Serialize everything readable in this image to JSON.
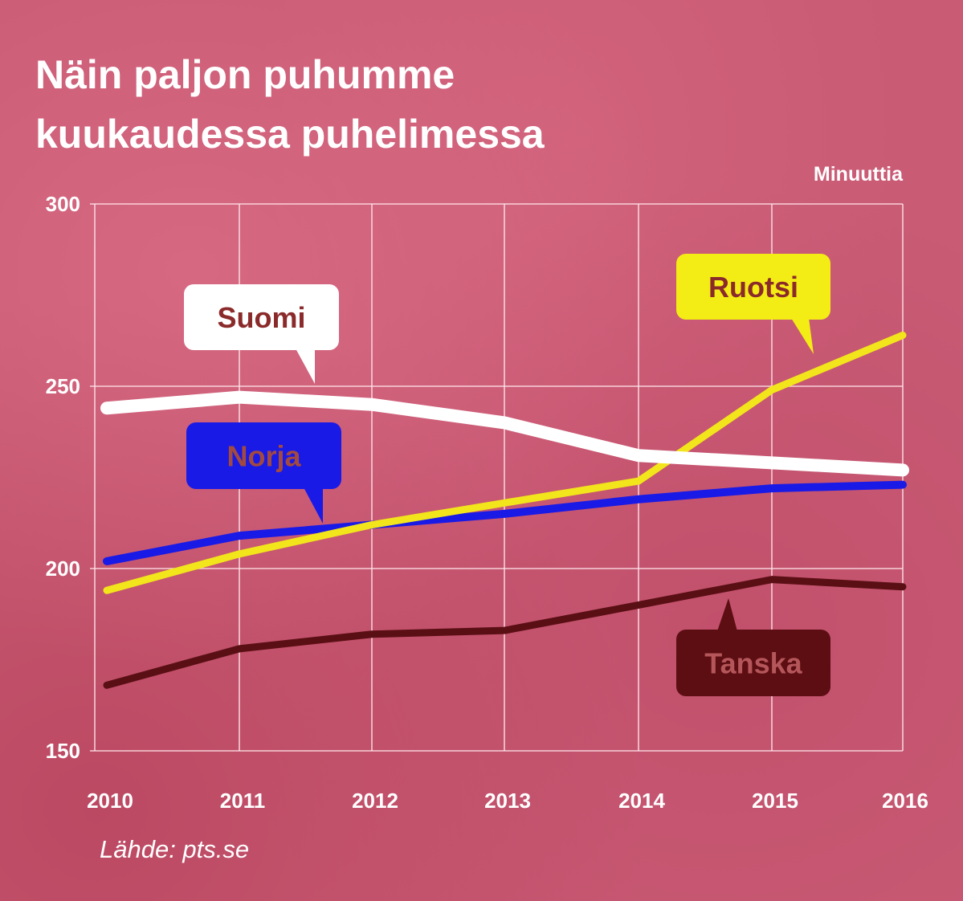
{
  "title_line1": "Näin paljon puhumme",
  "title_line2": "kuukaudessa puhelimessa",
  "unit_label": "Minuuttia",
  "source": "Lähde: pts.se",
  "chart_data": {
    "type": "line",
    "title": "Näin paljon puhumme kuukaudessa puhelimessa",
    "ylabel": "Minuuttia",
    "xlabel": "",
    "x": [
      2010,
      2011,
      2012,
      2013,
      2014,
      2015,
      2016
    ],
    "x_tick_labels": [
      "2010",
      "2011",
      "2012",
      "2013",
      "2014",
      "2015",
      "2016"
    ],
    "ylim": [
      150,
      300
    ],
    "y_ticks": [
      150,
      200,
      250,
      300
    ],
    "y_tick_labels": [
      "150",
      "200",
      "250",
      "300"
    ],
    "grid": true,
    "series": [
      {
        "name": "Suomi",
        "color": "#ffffff",
        "line_color": "#ffffff",
        "label_bg": "#ffffff",
        "label_text": "#8b2a2a",
        "values": [
          244,
          247,
          245,
          240,
          231,
          229,
          227
        ]
      },
      {
        "name": "Ruotsi",
        "color": "#f2e51b",
        "line_color": "#f2e51b",
        "label_bg": "#f4ec15",
        "label_text": "#8b2a2a",
        "values": [
          194,
          204,
          212,
          218,
          224,
          249,
          264
        ]
      },
      {
        "name": "Norja",
        "color": "#1a1ae6",
        "line_color": "#1a1ae6",
        "label_bg": "#1a1ae6",
        "label_text": "#a34a40",
        "values": [
          202,
          209,
          212,
          215,
          219,
          222,
          223
        ]
      },
      {
        "name": "Tanska",
        "color": "#5a0f14",
        "line_color": "#5a0f14",
        "label_bg": "#5c0e12",
        "label_text": "#b4565a",
        "values": [
          168,
          178,
          182,
          183,
          190,
          197,
          195
        ]
      }
    ]
  }
}
